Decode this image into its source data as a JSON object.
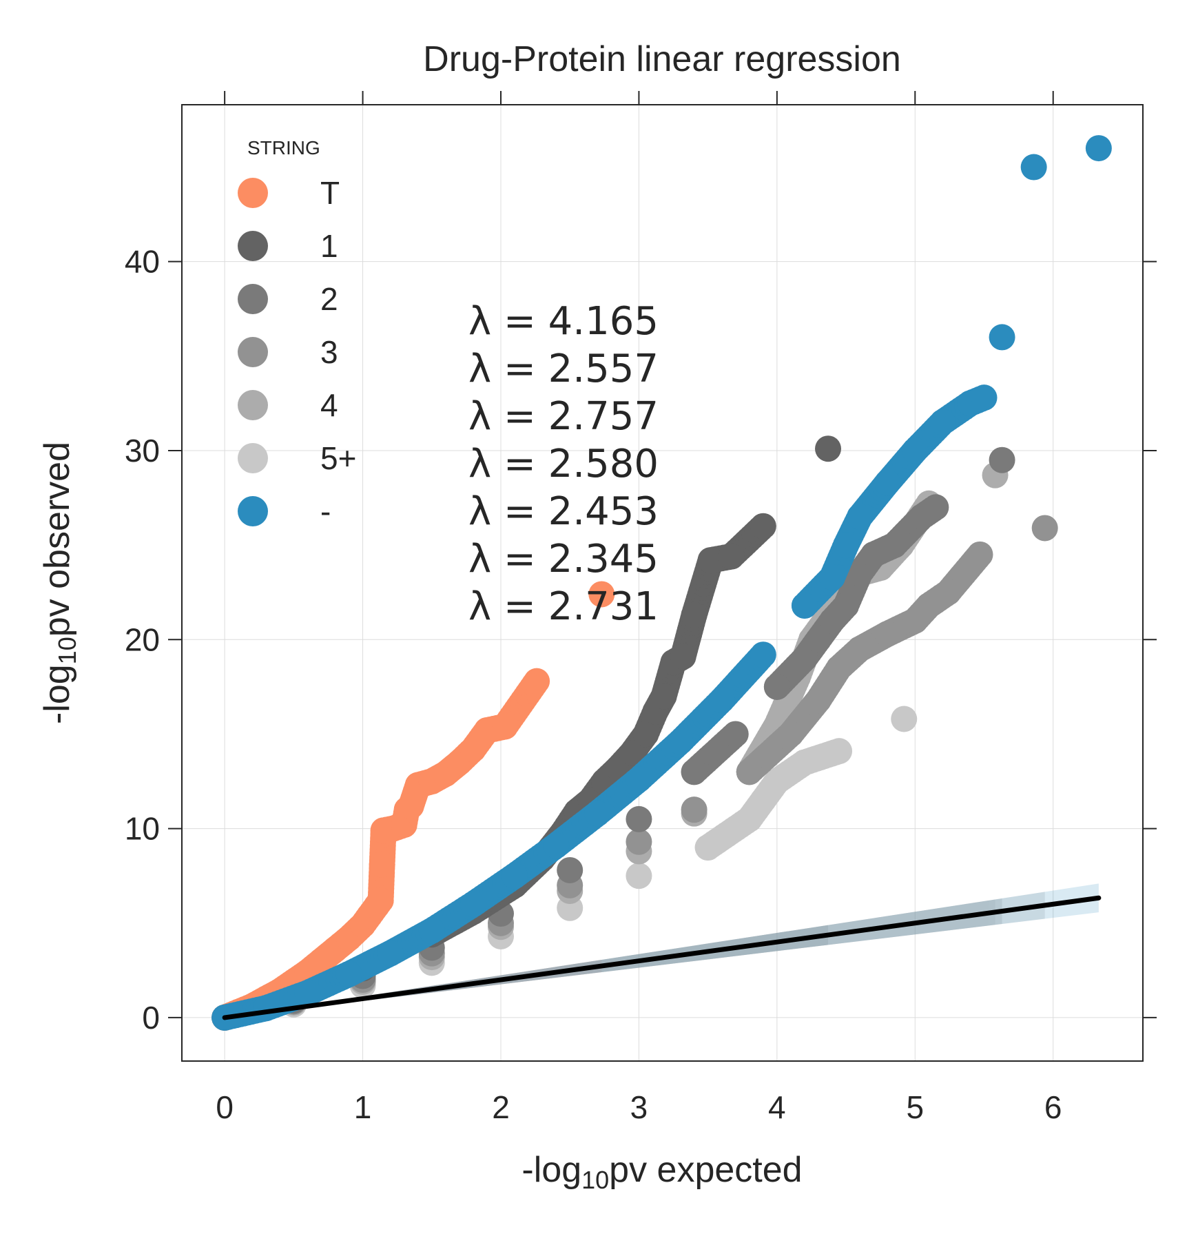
{
  "chart_data": {
    "type": "scatter",
    "title": "Drug-Protein linear regression",
    "xlabel_prefix": "-log",
    "xlabel_sub": "10",
    "xlabel_suffix": "pv expected",
    "ylabel_prefix": "-log",
    "ylabel_sub": "10",
    "ylabel_suffix": "pv observed",
    "xlim": [
      -0.31,
      6.65
    ],
    "ylim": [
      -2.3,
      48.3
    ],
    "xticks": [
      0,
      1,
      2,
      3,
      4,
      5,
      6
    ],
    "yticks": [
      0,
      10,
      20,
      30,
      40
    ],
    "grid": true,
    "legend": {
      "title": "STRING",
      "placement": "top-left",
      "entries": [
        "T",
        "1",
        "2",
        "3",
        "4",
        "5+",
        "-"
      ]
    },
    "annotations": [
      "λ = 4.165",
      "λ = 2.557",
      "λ = 2.757",
      "λ = 2.580",
      "λ = 2.453",
      "λ = 2.345",
      "λ = 2.731"
    ],
    "series": [
      {
        "name": "T",
        "color": "#fc8d62",
        "band_max_x": 2.73,
        "points": [
          [
            0,
            0
          ],
          [
            0.1,
            0.3
          ],
          [
            0.2,
            0.6
          ],
          [
            0.3,
            1.0
          ],
          [
            0.4,
            1.4
          ],
          [
            0.5,
            1.9
          ],
          [
            0.6,
            2.4
          ],
          [
            0.7,
            3.0
          ],
          [
            0.8,
            3.6
          ],
          [
            0.9,
            4.2
          ],
          [
            1.0,
            4.9
          ],
          [
            1.05,
            5.4
          ],
          [
            1.1,
            5.9
          ],
          [
            1.13,
            6.2
          ],
          [
            1.14,
            8.1
          ],
          [
            1.15,
            9.9
          ],
          [
            1.22,
            10.0
          ],
          [
            1.3,
            10.2
          ],
          [
            1.32,
            11.0
          ],
          [
            1.35,
            11.2
          ],
          [
            1.4,
            12.3
          ],
          [
            1.5,
            12.5
          ],
          [
            1.6,
            12.9
          ],
          [
            1.7,
            13.5
          ],
          [
            1.8,
            14.2
          ],
          [
            1.9,
            15.2
          ],
          [
            2.03,
            15.4
          ],
          [
            2.26,
            17.8
          ],
          [
            2.73,
            22.4
          ]
        ]
      },
      {
        "name": "1",
        "color": "#636363",
        "band_max_x": 4.37,
        "points": [
          [
            0,
            0
          ],
          [
            0.5,
            1.1
          ],
          [
            1.0,
            2.6
          ],
          [
            1.5,
            4.4
          ],
          [
            1.8,
            5.6
          ],
          [
            2.1,
            7.0
          ],
          [
            2.3,
            8.4
          ],
          [
            2.45,
            9.8
          ],
          [
            2.55,
            10.9
          ],
          [
            2.65,
            11.5
          ],
          [
            2.75,
            12.5
          ],
          [
            2.85,
            13.2
          ],
          [
            2.95,
            14.0
          ],
          [
            3.05,
            15.0
          ],
          [
            3.12,
            16.2
          ],
          [
            3.18,
            17.0
          ],
          [
            3.25,
            18.8
          ],
          [
            3.32,
            19.1
          ],
          [
            3.4,
            21.3
          ],
          [
            3.52,
            24.2
          ],
          [
            3.67,
            24.4
          ],
          [
            3.9,
            26.0
          ],
          [
            4.37,
            30.1
          ]
        ]
      },
      {
        "name": "2",
        "color": "#7a7a7a",
        "band_max_x": 5.63,
        "points": [
          [
            0,
            0
          ],
          [
            0.5,
            0.9
          ],
          [
            1.0,
            2.2
          ],
          [
            1.5,
            3.7
          ],
          [
            2.0,
            5.5
          ],
          [
            2.5,
            7.8
          ],
          [
            3.0,
            10.5
          ],
          [
            3.4,
            13.0
          ],
          [
            3.7,
            15.0
          ],
          [
            4.0,
            17.5
          ],
          [
            4.2,
            19.0
          ],
          [
            4.3,
            20.0
          ],
          [
            4.4,
            21.0
          ],
          [
            4.5,
            21.8
          ],
          [
            4.6,
            23.5
          ],
          [
            4.7,
            24.5
          ],
          [
            4.85,
            25.0
          ],
          [
            5.05,
            26.5
          ],
          [
            5.15,
            27.0
          ],
          [
            5.63,
            29.5
          ]
        ]
      },
      {
        "name": "3",
        "color": "#929292",
        "band_max_x": 5.94,
        "points": [
          [
            0,
            0
          ],
          [
            0.5,
            0.85
          ],
          [
            1.0,
            2.0
          ],
          [
            1.5,
            3.4
          ],
          [
            2.0,
            5.0
          ],
          [
            2.5,
            7.0
          ],
          [
            3.0,
            9.3
          ],
          [
            3.4,
            11.0
          ],
          [
            3.8,
            13.0
          ],
          [
            4.1,
            15.0
          ],
          [
            4.3,
            16.8
          ],
          [
            4.45,
            18.5
          ],
          [
            4.6,
            19.5
          ],
          [
            4.8,
            20.3
          ],
          [
            5.0,
            21.0
          ],
          [
            5.1,
            21.8
          ],
          [
            5.24,
            22.5
          ],
          [
            5.47,
            24.5
          ],
          [
            5.94,
            25.9
          ]
        ]
      },
      {
        "name": "4",
        "color": "#acacac",
        "band_max_x": 5.58,
        "points": [
          [
            0,
            0
          ],
          [
            0.5,
            0.8
          ],
          [
            1.0,
            1.9
          ],
          [
            1.5,
            3.2
          ],
          [
            2.0,
            4.8
          ],
          [
            2.5,
            6.7
          ],
          [
            3.0,
            8.8
          ],
          [
            3.4,
            10.8
          ],
          [
            3.8,
            13.0
          ],
          [
            4.0,
            15.5
          ],
          [
            4.15,
            18.0
          ],
          [
            4.25,
            20.0
          ],
          [
            4.4,
            21.5
          ],
          [
            4.6,
            23.5
          ],
          [
            4.75,
            23.8
          ],
          [
            4.9,
            25.0
          ],
          [
            5.1,
            27.2
          ],
          [
            5.58,
            28.7
          ]
        ]
      },
      {
        "name": "5+",
        "color": "#c8c8c8",
        "band_max_x": 5.53,
        "points": [
          [
            0,
            0
          ],
          [
            0.5,
            0.7
          ],
          [
            1.0,
            1.7
          ],
          [
            1.5,
            2.9
          ],
          [
            2.0,
            4.3
          ],
          [
            2.5,
            5.8
          ],
          [
            3.0,
            7.5
          ],
          [
            3.5,
            9.0
          ],
          [
            3.8,
            10.5
          ],
          [
            3.9,
            11.5
          ],
          [
            4.0,
            12.5
          ],
          [
            4.2,
            13.5
          ],
          [
            4.45,
            14.1
          ],
          [
            4.92,
            15.8
          ]
        ]
      },
      {
        "name": "-",
        "color": "#2b8cbe",
        "band_max_x": 6.33,
        "points": [
          [
            0,
            0
          ],
          [
            0.3,
            0.5
          ],
          [
            0.6,
            1.3
          ],
          [
            0.9,
            2.3
          ],
          [
            1.2,
            3.4
          ],
          [
            1.5,
            4.6
          ],
          [
            1.8,
            6.0
          ],
          [
            2.1,
            7.5
          ],
          [
            2.4,
            9.1
          ],
          [
            2.7,
            10.8
          ],
          [
            3.0,
            12.6
          ],
          [
            3.3,
            14.6
          ],
          [
            3.6,
            16.8
          ],
          [
            3.9,
            19.2
          ],
          [
            4.2,
            21.8
          ],
          [
            4.4,
            23.3
          ],
          [
            4.5,
            25.0
          ],
          [
            4.6,
            26.5
          ],
          [
            4.8,
            28.3
          ],
          [
            5.0,
            30.0
          ],
          [
            5.2,
            31.5
          ],
          [
            5.4,
            32.5
          ],
          [
            5.5,
            32.8
          ],
          [
            5.63,
            36.0
          ],
          [
            5.86,
            45.0
          ],
          [
            6.33,
            46.0
          ]
        ]
      }
    ],
    "reference_line": {
      "color": "#000000",
      "x": [
        0,
        6.33
      ],
      "y": [
        0,
        6.33
      ]
    }
  }
}
